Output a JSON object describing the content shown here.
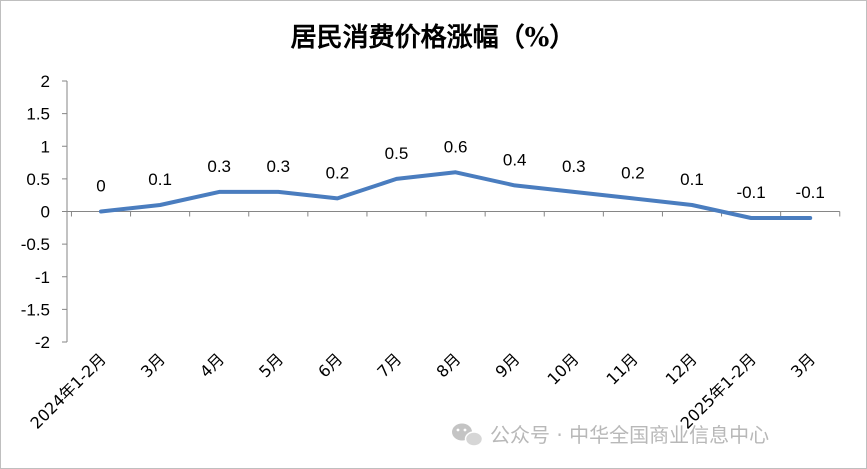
{
  "chart_data": {
    "type": "line",
    "title": "居民消费价格涨幅（%）",
    "categories": [
      "2024年1-2月",
      "3月",
      "4月",
      "5月",
      "6月",
      "7月",
      "8月",
      "9月",
      "10月",
      "11月",
      "12月",
      "2025年1-2月",
      "3月"
    ],
    "series": [
      {
        "values": [
          0,
          0.1,
          0.3,
          0.3,
          0.2,
          0.5,
          0.6,
          0.4,
          0.3,
          0.2,
          0.1,
          -0.1,
          -0.1
        ]
      }
    ],
    "data_labels": [
      "0",
      "0.1",
      "0.3",
      "0.3",
      "0.2",
      "0.5",
      "0.6",
      "0.4",
      "0.3",
      "0.2",
      "0.1",
      "-0.1",
      "-0.1"
    ],
    "y_ticks": [
      "2",
      "1.5",
      "1",
      "0.5",
      "0",
      "-0.5",
      "-1",
      "-1.5",
      "-2"
    ],
    "ylim": [
      -2,
      2
    ],
    "grid": false,
    "legend": "none",
    "line_color": "#4a7dbf"
  },
  "watermark": {
    "icon": "wechat-icon",
    "text": "公众号 · 中华全国商业信息中心"
  }
}
